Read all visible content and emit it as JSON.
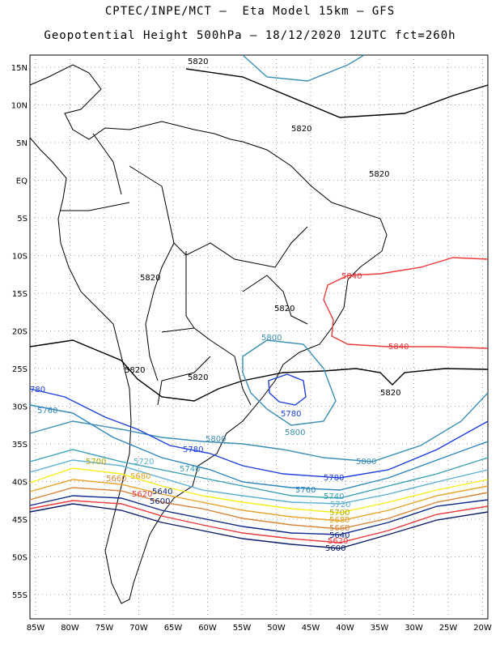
{
  "header": {
    "line1": "CPTEC/INPE/MCT –  Eta Model 15km – GFS",
    "line2": "Geopotential Height 500hPa – 18/12/2020 12UTC fct=260h"
  },
  "axes": {
    "lat_labels": [
      "15N",
      "10N",
      "5N",
      "EQ",
      "5S",
      "10S",
      "15S",
      "20S",
      "25S",
      "30S",
      "35S",
      "40S",
      "45S",
      "50S",
      "55S"
    ],
    "lon_labels": [
      "85W",
      "80W",
      "75W",
      "70W",
      "65W",
      "60W",
      "55W",
      "50W",
      "45W",
      "40W",
      "35W",
      "30W",
      "25W",
      "20W"
    ]
  },
  "map": {
    "grid": "dotted",
    "colors": {
      "c5820": "#000000",
      "c5840": "#ee3a3a",
      "c5800": "#3a8fb7",
      "c5780": "#1d3fe0",
      "c5760": "#2e86c1",
      "c5740": "#38a0b8",
      "c5720": "#5bb0d8",
      "c5700": "#f5ef1a",
      "c5680": "#eba427",
      "c5660": "#d9853b",
      "c5620": "#ee3a3a",
      "c5600": "#0b1f6e",
      "c5640": "#102a8c"
    },
    "contour_labels": {
      "l5820_a": "5820",
      "l5820_b": "5820",
      "l5820_c": "5820",
      "l5820_d": "5820",
      "l5820_e": "5820",
      "l5820_f": "5820",
      "l5820_g": "5820",
      "l5820_h": "5820",
      "l5840_a": "5840",
      "l5840_b": "5840",
      "l5800_a": "5800",
      "l5800_b": "5800",
      "l5800_c": "5800",
      "l5800_d": "5800",
      "l5780_a": "5780",
      "l5780_b": "780",
      "l5780_c": "5780",
      "l5780_d": "5780",
      "l5760_a": "5760",
      "l5760_b": "5760",
      "l5740_a": "5740",
      "l5740_b": "5740",
      "l5720_a": "5720",
      "l5720_b": "5720",
      "l5700_a": "5700",
      "l5700_b": "5700",
      "l5680_a": "5680",
      "l5680_b": "5680",
      "l5660_a": "5660",
      "l5660_b": "5660",
      "l5640_a": "5640",
      "l5640_b": "5640",
      "l5620_a": "5620",
      "l5620_b": "5620",
      "l5600_a": "5600",
      "l5600_b": "5600"
    }
  }
}
